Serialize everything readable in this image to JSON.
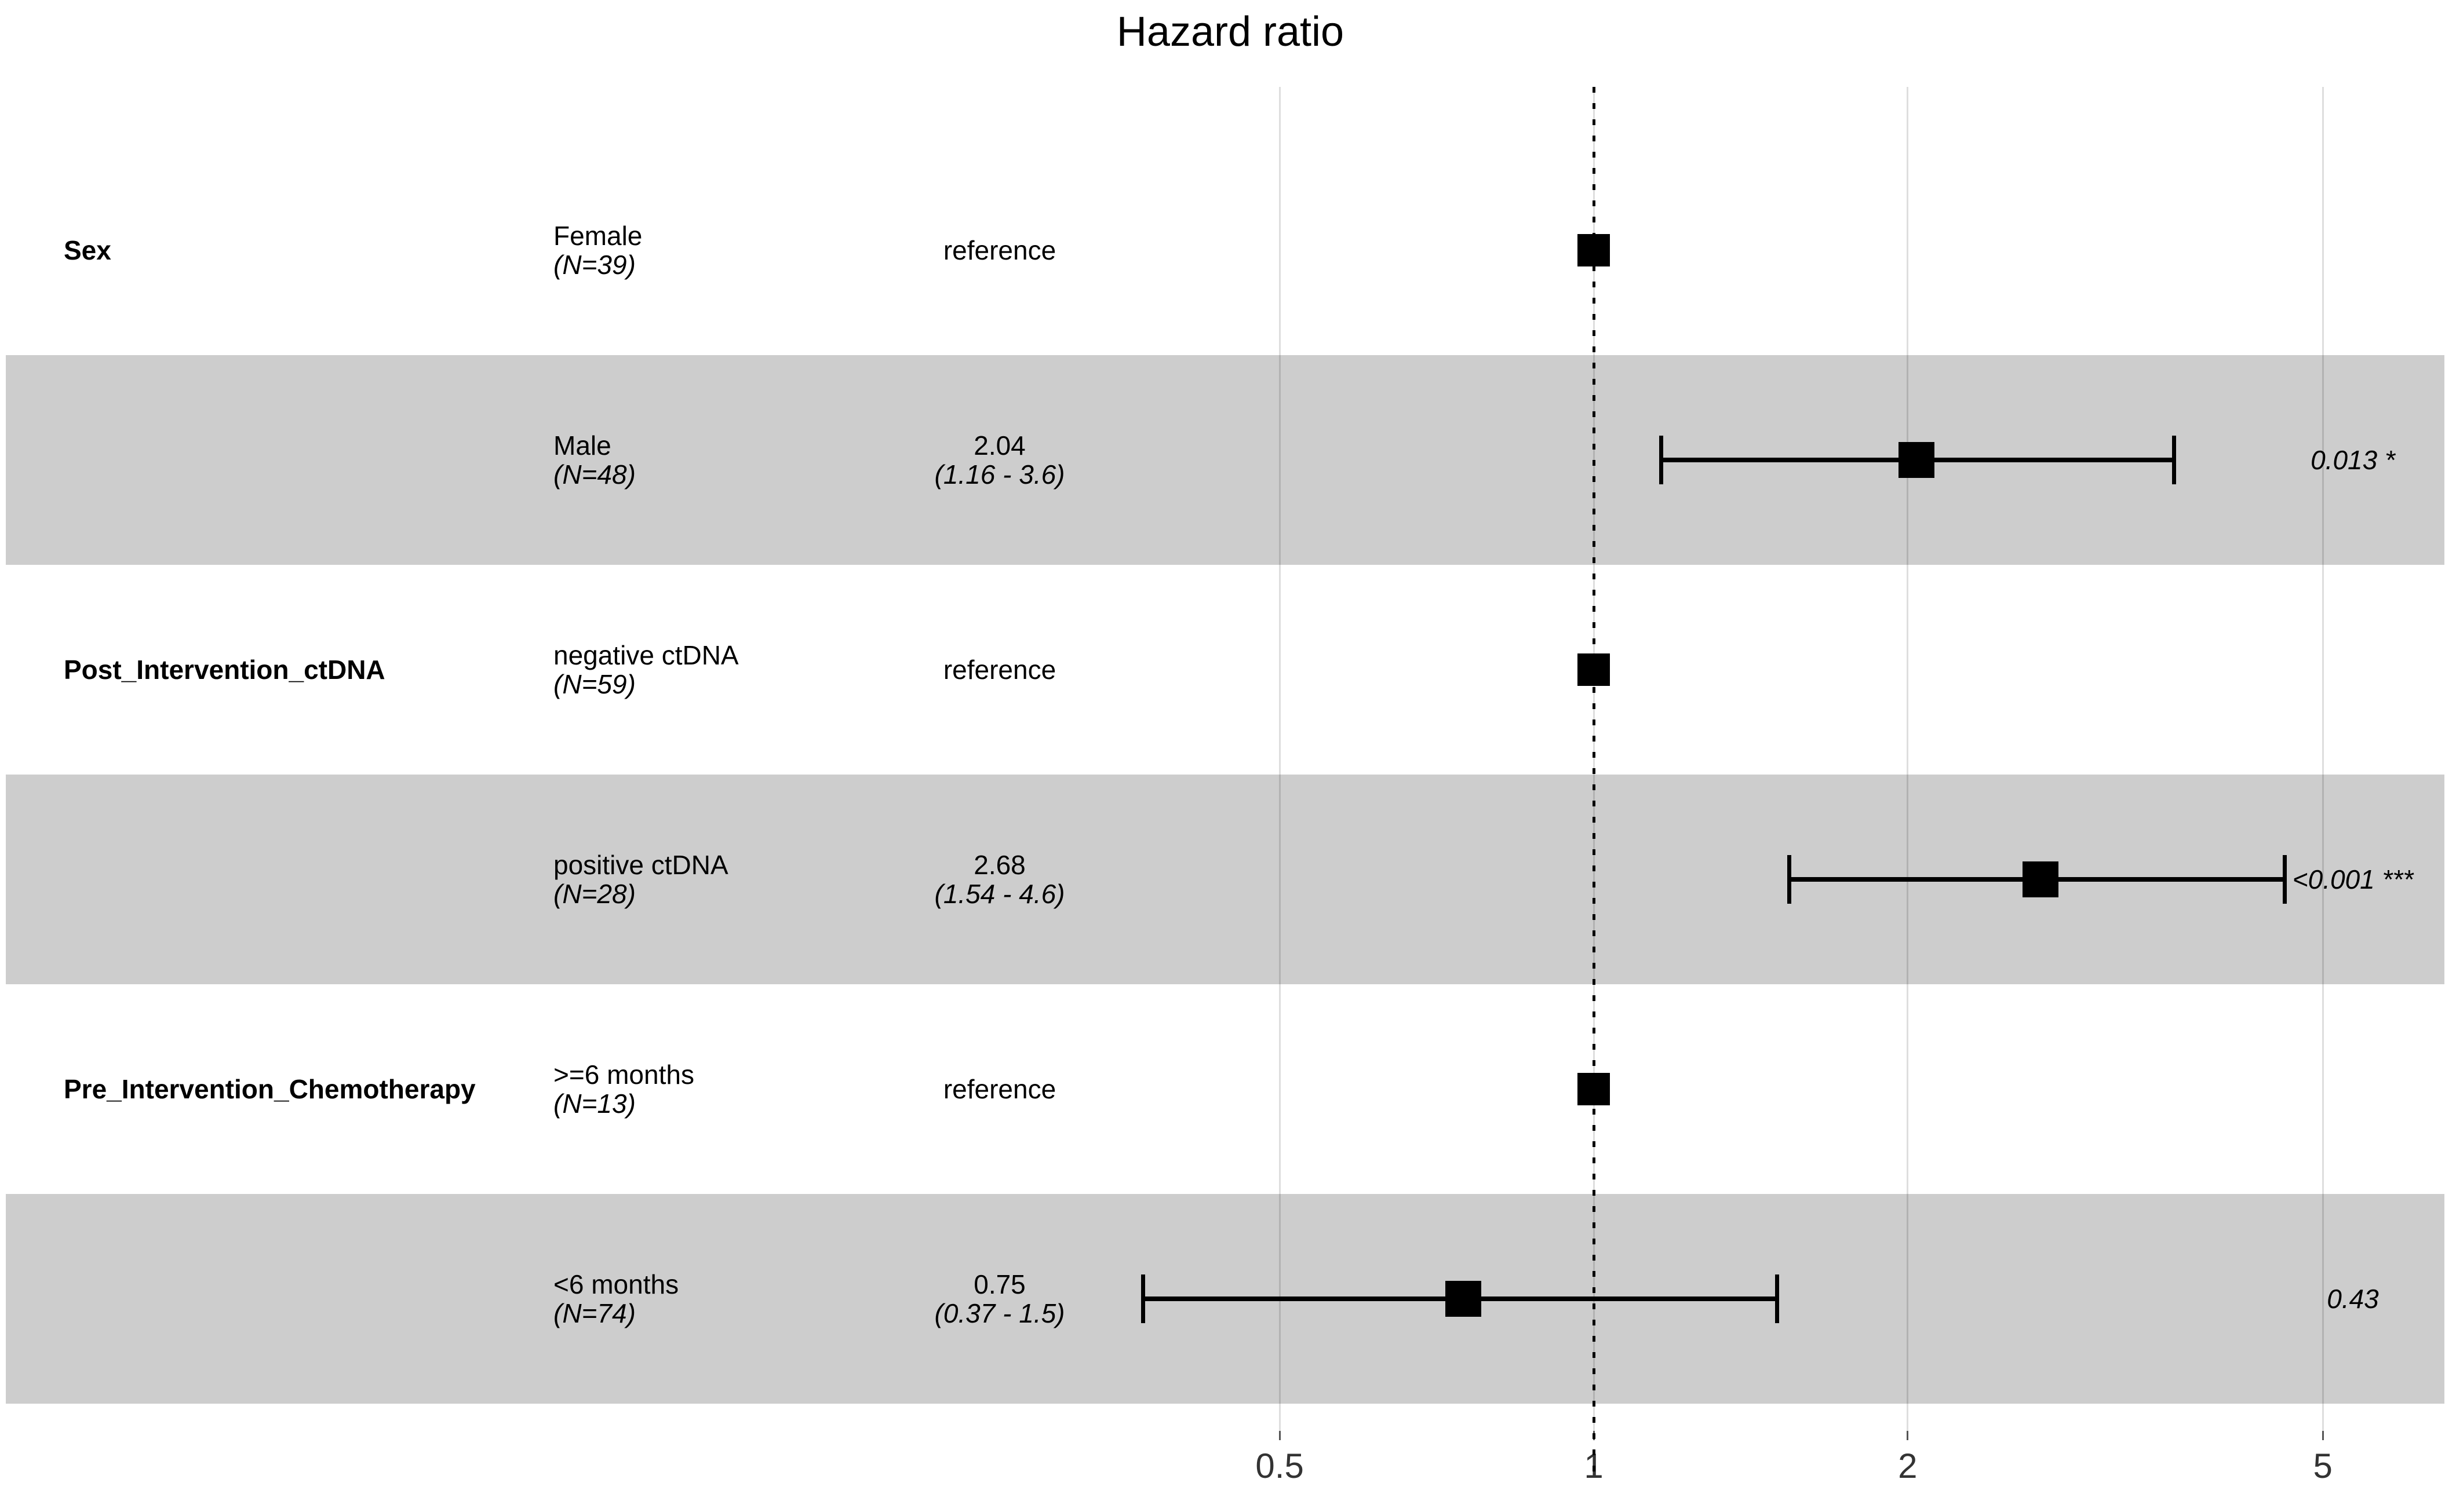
{
  "chart_data": {
    "type": "scatter",
    "variant": "forest-plot",
    "title": "Hazard ratio",
    "x_scale": "log10",
    "x_ticks": [
      0.5,
      1,
      2,
      5
    ],
    "reference_line": 1,
    "grid": "vertical-only",
    "legend": "none",
    "columns": [
      "variable",
      "level (N)",
      "hazard ratio estimate (95% CI)",
      "forest",
      "p-value"
    ],
    "rows": [
      {
        "term": "Sex",
        "level": "Female",
        "n": "(N=39)",
        "estimate": "reference",
        "ci": "",
        "hr": 1,
        "ci_low": null,
        "ci_high": null,
        "p": "",
        "reference": true
      },
      {
        "term": "",
        "level": "Male",
        "n": "(N=48)",
        "estimate": "2.04",
        "ci": "(1.16 - 3.6)",
        "hr": 2.04,
        "ci_low": 1.16,
        "ci_high": 3.6,
        "p": "0.013 *",
        "reference": false
      },
      {
        "term": "Post_Intervention_ctDNA",
        "level": "negative ctDNA",
        "n": "(N=59)",
        "estimate": "reference",
        "ci": "",
        "hr": 1,
        "ci_low": null,
        "ci_high": null,
        "p": "",
        "reference": true
      },
      {
        "term": "",
        "level": "positive ctDNA",
        "n": "(N=28)",
        "estimate": "2.68",
        "ci": "(1.54 - 4.6)",
        "hr": 2.68,
        "ci_low": 1.54,
        "ci_high": 4.6,
        "p": "<0.001 ***",
        "reference": false
      },
      {
        "term": "Pre_Intervention_Chemotherapy",
        "level": ">=6 months",
        "n": "(N=13)",
        "estimate": "reference",
        "ci": "",
        "hr": 1,
        "ci_low": null,
        "ci_high": null,
        "p": "",
        "reference": true
      },
      {
        "term": "",
        "level": "<6 months",
        "n": "(N=74)",
        "estimate": "0.75",
        "ci": "(0.37 - 1.5)",
        "hr": 0.75,
        "ci_low": 0.37,
        "ci_high": 1.5,
        "p": "0.43",
        "reference": false
      }
    ],
    "colors": {
      "band": "#cdcdcd",
      "marker": "#000000",
      "gridline": "#d9d9d9",
      "tick_text": "#333333"
    }
  }
}
